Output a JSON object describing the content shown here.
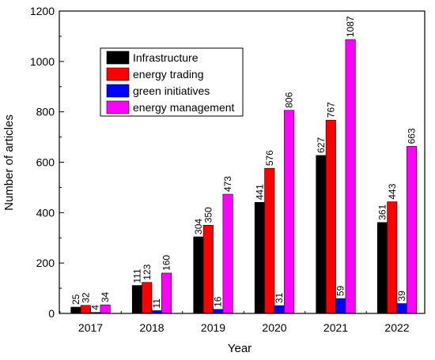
{
  "chart_data": {
    "type": "bar",
    "title": "",
    "xlabel": "Year",
    "ylabel": "Number of articles",
    "categories": [
      "2017",
      "2018",
      "2019",
      "2020",
      "2021",
      "2022"
    ],
    "ylim": [
      0,
      1200
    ],
    "yticks": [
      0,
      200,
      400,
      600,
      800,
      1000,
      1200
    ],
    "grid": false,
    "legend_position": "top-left",
    "series": [
      {
        "name": "Infrastructure",
        "color": "#000000",
        "values": [
          25,
          111,
          304,
          441,
          627,
          361
        ]
      },
      {
        "name": "energy trading",
        "color": "#ff0000",
        "values": [
          32,
          123,
          350,
          576,
          767,
          443
        ]
      },
      {
        "name": "green initiatives",
        "color": "#0000ff",
        "values": [
          4,
          11,
          16,
          31,
          59,
          39
        ]
      },
      {
        "name": "energy management",
        "color": "#ff00ff",
        "values": [
          34,
          160,
          473,
          806,
          1087,
          663
        ]
      }
    ]
  }
}
